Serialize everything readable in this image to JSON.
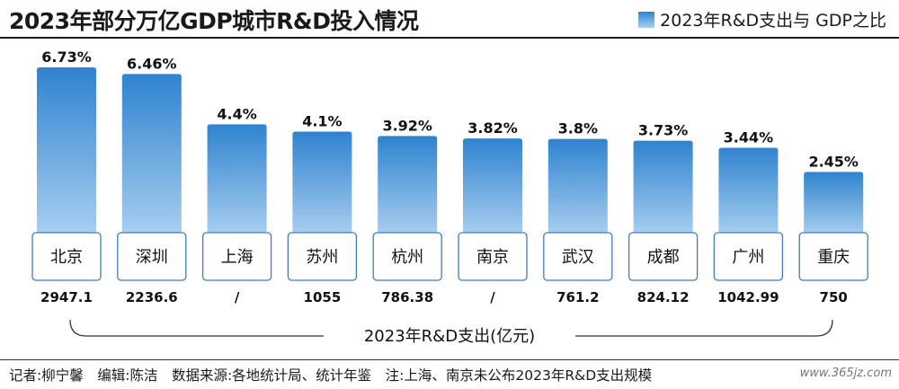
{
  "title": "2023年部分万亿GDP城市R&D投入情况",
  "legend": "2023年R&D支出与 GDP之比",
  "colors": {
    "bar_top": "#2f83d0",
    "bar_bottom": "#a9cfef",
    "box_border": "#3d7ec2"
  },
  "chart_data": {
    "type": "bar",
    "categories": [
      "北京",
      "深圳",
      "上海",
      "苏州",
      "杭州",
      "南京",
      "武汉",
      "成都",
      "广州",
      "重庆"
    ],
    "series": [
      {
        "name": "2023年R&D支出与 GDP之比",
        "values": [
          6.73,
          6.46,
          4.4,
          4.1,
          3.92,
          3.82,
          3.8,
          3.73,
          3.44,
          2.45
        ],
        "labels": [
          "6.73%",
          "6.46%",
          "4.4%",
          "4.1%",
          "3.92%",
          "3.82%",
          "3.8%",
          "3.73%",
          "3.44%",
          "2.45%"
        ]
      }
    ],
    "rd_expenditure": {
      "label": "2023年R&D支出(亿元)",
      "values": [
        "2947.1",
        "2236.6",
        "/",
        "1055",
        "786.38",
        "/",
        "761.2",
        "824.12",
        "1042.99",
        "750"
      ]
    },
    "ylim": [
      0,
      6.73
    ],
    "grid": false
  },
  "footer": "记者:柳宁馨　编辑:陈洁　数据来源:各地统计局、统计年鉴　注:上海、南京未公布2023年R&D支出规模",
  "watermark": "www.365jz.com"
}
